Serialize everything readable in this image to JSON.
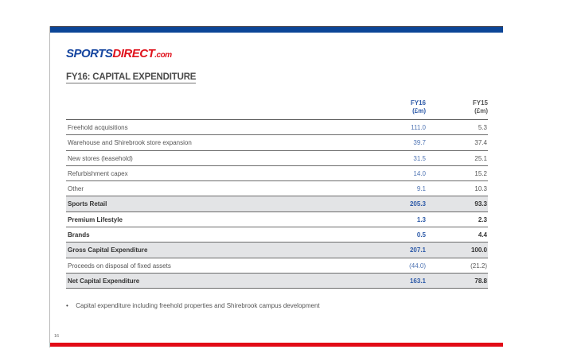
{
  "brand": {
    "logo_part1": "SPORTS",
    "logo_part2": "DIRECT",
    "logo_part3": ".com",
    "colors": {
      "blue": "#1646a0",
      "red": "#e0141e",
      "top_bar": "#0b4597",
      "bottom_bar": "#e20a16"
    }
  },
  "page": {
    "title": "FY16: CAPITAL EXPENDITURE",
    "number": "16"
  },
  "table": {
    "columns": [
      {
        "label": "FY16",
        "unit": "(£m)"
      },
      {
        "label": "FY15",
        "unit": "(£m)"
      }
    ],
    "rows": [
      {
        "label": "Freehold acquisitions",
        "fy16": "111.0",
        "fy15": "5.3"
      },
      {
        "label": "Warehouse and Shirebrook store expansion",
        "fy16": "39.7",
        "fy15": "37.4"
      },
      {
        "label": "New stores (leasehold)",
        "fy16": "31.5",
        "fy15": "25.1"
      },
      {
        "label": "Refurbishment capex",
        "fy16": "14.0",
        "fy15": "15.2"
      },
      {
        "label": "Other",
        "fy16": "9.1",
        "fy15": "10.3"
      },
      {
        "label": "Sports Retail",
        "fy16": "205.3",
        "fy15": "93.3"
      },
      {
        "label": "Premium Lifestyle",
        "fy16": "1.3",
        "fy15": "2.3"
      },
      {
        "label": "Brands",
        "fy16": "0.5",
        "fy15": "4.4"
      },
      {
        "label": "Gross Capital Expenditure",
        "fy16": "207.1",
        "fy15": "100.0"
      },
      {
        "label": "Proceeds on disposal of fixed assets",
        "fy16": "(44.0)",
        "fy15": "(21.2)"
      },
      {
        "label": "Net Capital Expenditure",
        "fy16": "163.1",
        "fy15": "78.8"
      }
    ]
  },
  "notes": [
    "Capital expenditure including freehold properties and Shirebrook campus development"
  ]
}
